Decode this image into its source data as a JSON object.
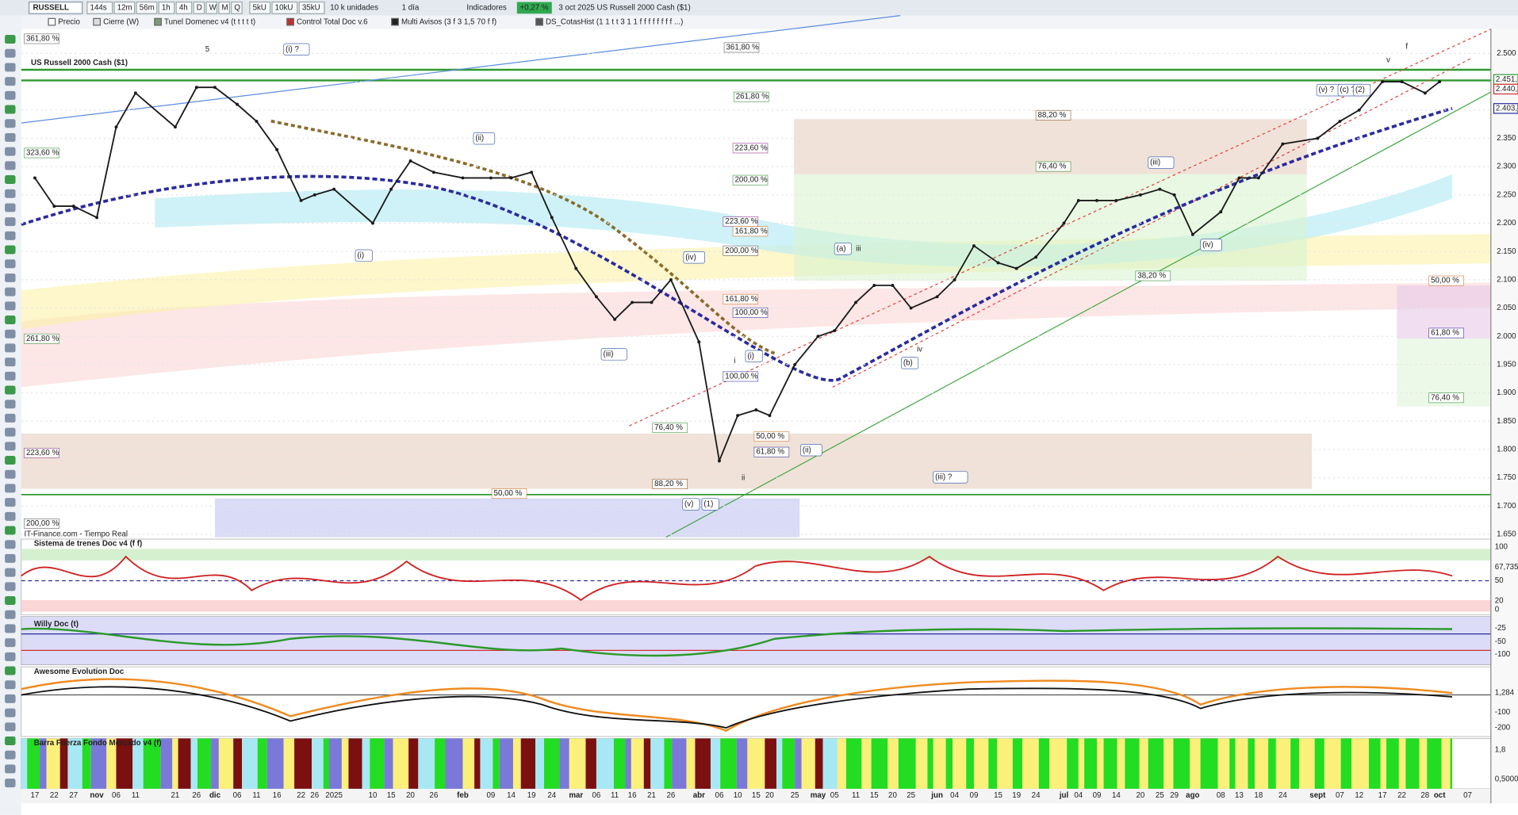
{
  "toolbar": {
    "symbol": "RUSSELL",
    "buttons": [
      "144s",
      "12m",
      "56m",
      "1h",
      "4h",
      "D",
      "W",
      "M",
      "Q",
      "5kU",
      "10kU",
      "35kU"
    ],
    "units": "10 k unidades",
    "period": "1 día",
    "indicators": "Indicadores",
    "change": "+0,27 %",
    "info": "3 oct 2025 US Russell 2000 Cash ($1)"
  },
  "indicator_bar": [
    "Precio",
    "Cierre (W)",
    "Tunel Domenec v4 (t t t t t)",
    "Control Total Doc v.6",
    "Multi Avisos (3 f 3 1,5 70 f f)",
    "DS_CotasHist (1 1 t t 3 1 1 f f f f f f f f ...)"
  ],
  "chart_data": {
    "type": "line",
    "title": "US Russell 2000 Cash ($1)",
    "source": "IT-Finance.com - Tiempo Real",
    "color": "#1a1a1a",
    "x": [
      "17",
      "22",
      "27",
      "nov",
      "06",
      "11",
      "21",
      "26",
      "dic",
      "06",
      "11",
      "16",
      "22",
      "26",
      "2025",
      "10",
      "15",
      "20",
      "26",
      "feb",
      "09",
      "14",
      "19",
      "24",
      "mar",
      "06",
      "11",
      "16",
      "21",
      "26",
      "abr",
      "06",
      "10",
      "15",
      "20",
      "25",
      "may",
      "05",
      "11",
      "15",
      "20",
      "25",
      "jun",
      "04",
      "09",
      "15",
      "19",
      "24",
      "jul",
      "04",
      "09",
      "14",
      "20",
      "25",
      "29",
      "ago",
      "08",
      "13",
      "18",
      "24",
      "sept",
      "07",
      "12",
      "17",
      "22",
      "28",
      "oct",
      "07"
    ],
    "values": [
      2.28,
      2.23,
      2.23,
      2.21,
      2.37,
      2.43,
      2.37,
      2.44,
      2.44,
      2.41,
      2.38,
      2.33,
      2.24,
      2.25,
      2.26,
      2.2,
      2.26,
      2.31,
      2.29,
      2.28,
      2.28,
      2.28,
      2.29,
      2.21,
      2.12,
      2.07,
      2.03,
      2.06,
      2.06,
      2.1,
      1.99,
      1.78,
      1.86,
      1.87,
      1.86,
      1.95,
      2.0,
      2.01,
      2.06,
      2.09,
      2.09,
      2.05,
      2.07,
      2.1,
      2.16,
      2.13,
      2.12,
      2.14,
      2.2,
      2.24,
      2.24,
      2.24,
      2.25,
      2.26,
      2.25,
      2.18,
      2.22,
      2.28,
      2.28,
      2.34,
      2.35,
      2.38,
      2.4,
      2.45,
      2.45,
      2.43,
      2.45,
      null
    ],
    "ylim": [
      1.645,
      2.543
    ],
    "yticks": [
      {
        "value": 1.65,
        "label": "1.650"
      },
      {
        "value": 1.7,
        "label": "1.700"
      },
      {
        "value": 1.75,
        "label": "1.750"
      },
      {
        "value": 1.8,
        "label": "1.800"
      },
      {
        "value": 1.85,
        "label": "1.850"
      },
      {
        "value": 1.9,
        "label": "1.900"
      },
      {
        "value": 1.95,
        "label": "1.950"
      },
      {
        "value": 2.0,
        "label": "2.000"
      },
      {
        "value": 2.05,
        "label": "2.050"
      },
      {
        "value": 2.1,
        "label": "2.100"
      },
      {
        "value": 2.15,
        "label": "2.150"
      },
      {
        "value": 2.2,
        "label": "2.200"
      },
      {
        "value": 2.25,
        "label": "2.250"
      },
      {
        "value": 2.3,
        "label": "2.300"
      },
      {
        "value": 2.35,
        "label": "2.350"
      },
      {
        "value": 2.4,
        "label": "2.400"
      },
      {
        "value": 2.45,
        "label": "2.450"
      },
      {
        "value": 2.5,
        "label": "2.500"
      }
    ],
    "grid": true,
    "price_labels": [
      "2.451,",
      "2.440,",
      "2.403,"
    ],
    "fib_labels": [
      "361,80 %",
      "323,60 %",
      "261,80 %",
      "223,60 %",
      "200,00 %",
      "361,80 %",
      "261,80 %",
      "88,20 %",
      "223,60 %",
      "200,00 %",
      "223,60 %",
      "161,80 %",
      "200,00 %",
      "161,80 %",
      "100,00 %",
      "76,40 %",
      "38,20 %",
      "50,00 %",
      "61,80 %",
      "76,40 %",
      "100,00 %",
      "76,40 %",
      "50,00 %",
      "61,80 %",
      "88,20 %",
      "50,00 %"
    ],
    "wave_labels": [
      "5",
      "(i) ?",
      "(ii)",
      "(i)",
      "(iii)",
      "(iv)",
      "(v)",
      "(1)",
      "(i)",
      "i",
      "ii",
      "(ii)",
      "(a)",
      "iii",
      "(b)",
      "iv",
      "(iii) ?",
      "(iii)",
      "(iv)",
      "(v) ?",
      "(c) ?",
      "(2)",
      "v",
      "f"
    ]
  },
  "panels": [
    {
      "title": "Sistema de trenes Doc v4 (f f)",
      "scale": [
        "100",
        "67,735",
        "50",
        "20",
        "0"
      ]
    },
    {
      "title": "Willy Doc (t)",
      "scale": [
        "-25",
        "-50",
        "-100"
      ]
    },
    {
      "title": "Awesome Evolution Doc",
      "scale": [
        "1,284",
        "-100",
        "-200"
      ]
    },
    {
      "title": "Barra Fuerza Fondo Mercado v4 (f)",
      "scale": [
        "1,8",
        "0,5000"
      ]
    }
  ]
}
